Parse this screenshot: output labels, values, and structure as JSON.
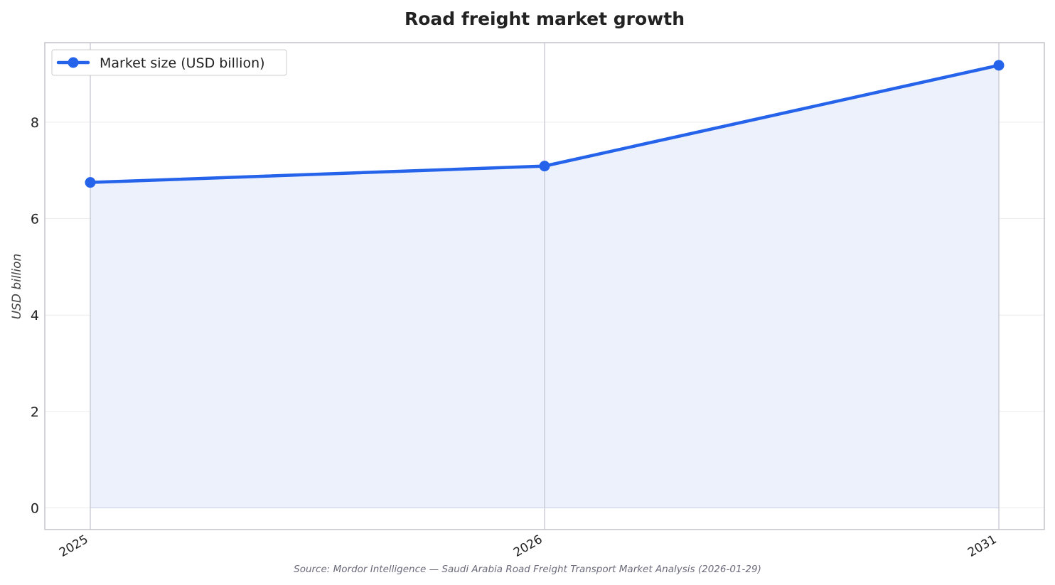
{
  "chart_data": {
    "type": "area",
    "title": "Road freight market growth",
    "ylabel": "USD billion",
    "xlabel": "",
    "categories": [
      "2025",
      "2026",
      "2031"
    ],
    "x": [
      2025,
      2026,
      2031
    ],
    "series": [
      {
        "name": "Market size (USD billion)",
        "values": [
          6.75,
          7.09,
          9.18
        ],
        "color": "#2563eb",
        "fill_color": "#ecf1fc"
      }
    ],
    "ylim": [
      -0.45,
      9.65
    ],
    "yticks": [
      0,
      2,
      4,
      6,
      8
    ],
    "ytick_labels": [
      "0",
      "2",
      "4",
      "6",
      "8"
    ],
    "grid": true,
    "legend": "top-left",
    "source": "Source: Mordor Intelligence — Saudi Arabia Road Freight Transport Market Analysis (2026-01-29)"
  }
}
